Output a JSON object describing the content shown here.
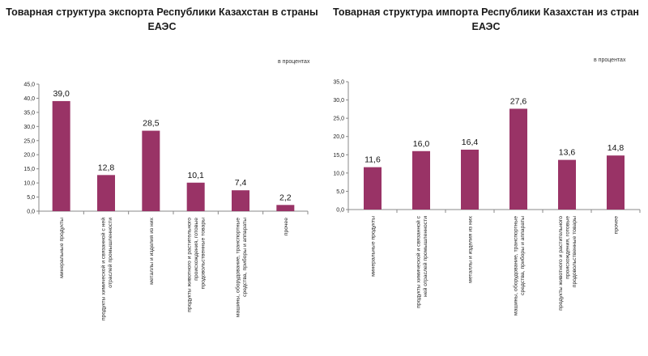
{
  "charts": [
    {
      "title_line1": "Товарная структура экспорта Республики Казахстан в страны",
      "title_line2": "ЕАЭС",
      "unit": "в процентах"
    },
    {
      "title_line1": "Товарная структура импорта Республики Казахстан из стран",
      "title_line2": "ЕАЭС",
      "unit": "в процентах"
    }
  ],
  "chart_data": [
    {
      "type": "bar",
      "title": "Товарная структура экспорта Республики Казахстан в страны ЕАЭС",
      "unit": "в процентах",
      "bar_color": "#993366",
      "ylim": [
        0,
        45
      ],
      "ytick_step": 5,
      "ytick_labels": [
        "0,0",
        "5,0",
        "10,0",
        "15,0",
        "20,0",
        "25,0",
        "30,0",
        "35,0",
        "40,0",
        "45,0"
      ],
      "grid": false,
      "categories": [
        [
          "минеральные продукты"
        ],
        [
          "продукты химической и связанной с ней",
          "отраслей промышленности"
        ],
        [
          "металлы и изделия из них"
        ],
        [
          "продукты животного и растительного",
          "происхождения, готовые",
          "продовольственные товары"
        ],
        [
          "машины, оборудование, транспортные",
          "средства, приборы и аппараты"
        ],
        [
          "прочее"
        ]
      ],
      "values": [
        39.0,
        12.8,
        28.5,
        10.1,
        7.4,
        2.2
      ],
      "value_labels": [
        "39,0",
        "12,8",
        "28,5",
        "10,1",
        "7,4",
        "2,2"
      ]
    },
    {
      "type": "bar",
      "title": "Товарная структура импорта Республики Казахстан из стран ЕАЭС",
      "unit": "в процентах",
      "bar_color": "#993366",
      "ylim": [
        0,
        35
      ],
      "ytick_step": 5,
      "ytick_labels": [
        "0,0",
        "5,0",
        "10,0",
        "15,0",
        "20,0",
        "25,0",
        "30,0",
        "35,0"
      ],
      "grid": false,
      "categories": [
        [
          "минеральные продукты"
        ],
        [
          "продукты химической и связанной с",
          "ней отраслей промышленности"
        ],
        [
          "металлы и изделия из них"
        ],
        [
          "машины, оборудование, транспортные",
          "средства, приборы и аппараты"
        ],
        [
          "продукты животного и растительного",
          "происхождения, готовые",
          "продовольственные товары"
        ],
        [
          "прочее"
        ]
      ],
      "values": [
        11.6,
        16.0,
        16.4,
        27.6,
        13.6,
        14.8
      ],
      "value_labels": [
        "11,6",
        "16,0",
        "16,4",
        "27,6",
        "13,6",
        "14,8"
      ]
    }
  ]
}
